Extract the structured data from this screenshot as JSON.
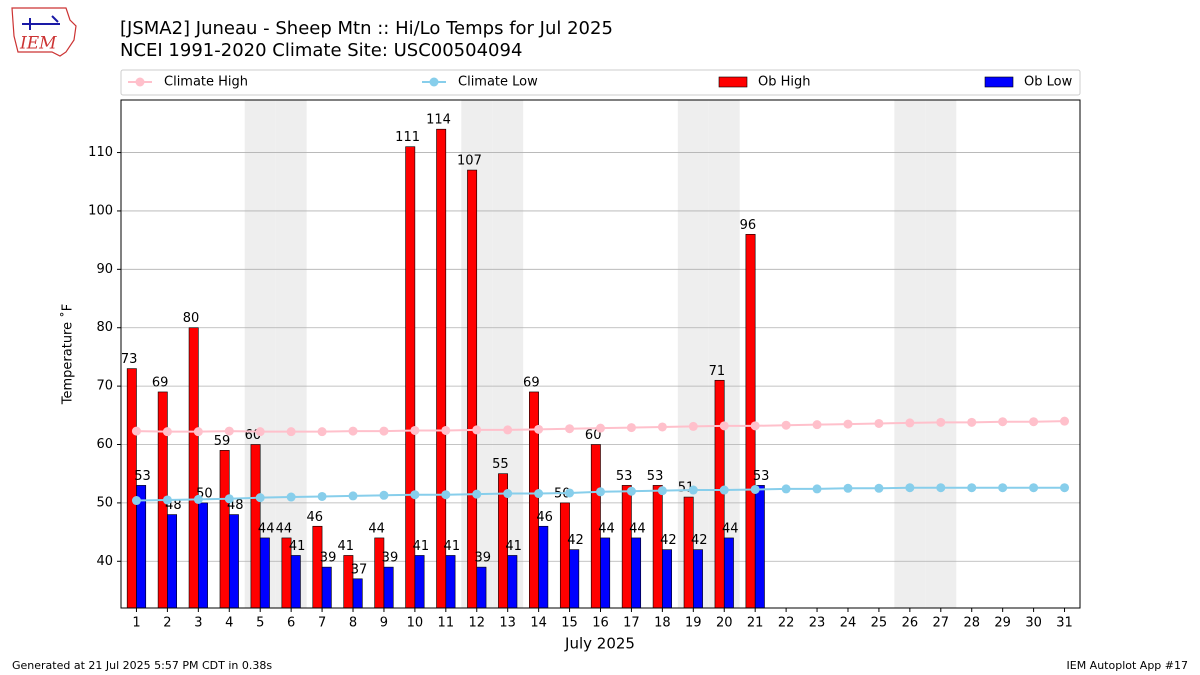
{
  "chart_data": {
    "type": "bar",
    "title": "[JSMA2] Juneau - Sheep Mtn :: Hi/Lo Temps for Jul 2025",
    "subtitle": "NCEI 1991-2020 Climate Site: USC00504094",
    "xlabel": "July 2025",
    "ylabel": "Temperature ˚F",
    "logo_text": "IEM",
    "footer_left": "Generated at 21 Jul 2025 5:57 PM CDT in 0.38s",
    "footer_right": "IEM Autoplot App #17",
    "categories": [
      "1",
      "2",
      "3",
      "4",
      "5",
      "6",
      "7",
      "8",
      "9",
      "10",
      "11",
      "12",
      "13",
      "14",
      "15",
      "16",
      "17",
      "18",
      "19",
      "20",
      "21",
      "22",
      "23",
      "24",
      "25",
      "26",
      "27",
      "28",
      "29",
      "30",
      "31"
    ],
    "shaded_categories": [
      "5",
      "6",
      "12",
      "13",
      "19",
      "20",
      "26",
      "27"
    ],
    "series": [
      {
        "name": "Climate High",
        "kind": "line",
        "color": "#ffc0cb",
        "values": [
          62.3,
          62.2,
          62.2,
          62.3,
          62.2,
          62.2,
          62.2,
          62.3,
          62.3,
          62.4,
          62.4,
          62.5,
          62.5,
          62.6,
          62.7,
          62.8,
          62.9,
          63.0,
          63.1,
          63.2,
          63.2,
          63.3,
          63.4,
          63.5,
          63.6,
          63.7,
          63.8,
          63.8,
          63.9,
          63.9,
          64.0
        ]
      },
      {
        "name": "Climate Low",
        "kind": "line",
        "color": "#87ceeb",
        "values": [
          50.4,
          50.5,
          50.6,
          50.7,
          50.9,
          51.0,
          51.1,
          51.2,
          51.3,
          51.4,
          51.4,
          51.5,
          51.6,
          51.6,
          51.7,
          51.9,
          52.0,
          52.1,
          52.2,
          52.2,
          52.3,
          52.4,
          52.4,
          52.5,
          52.5,
          52.6,
          52.6,
          52.6,
          52.6,
          52.6,
          52.6
        ]
      },
      {
        "name": "Ob High",
        "kind": "bar",
        "color": "#ff0000",
        "values": [
          73,
          69,
          80,
          59,
          60,
          44,
          46,
          41,
          44,
          111,
          114,
          107,
          55,
          69,
          50,
          60,
          53,
          53,
          51,
          71,
          96,
          null,
          null,
          null,
          null,
          null,
          null,
          null,
          null,
          null,
          null
        ]
      },
      {
        "name": "Ob Low",
        "kind": "bar",
        "color": "#0000ff",
        "values": [
          53,
          48,
          50,
          48,
          44,
          41,
          39,
          37,
          39,
          41,
          41,
          39,
          41,
          46,
          42,
          44,
          44,
          42,
          42,
          44,
          53,
          null,
          null,
          null,
          null,
          null,
          null,
          null,
          null,
          null,
          null
        ]
      }
    ],
    "ylim": [
      32,
      119
    ],
    "yticks": [
      40,
      50,
      60,
      70,
      80,
      90,
      100,
      110
    ],
    "grid": true,
    "legend": "top"
  }
}
